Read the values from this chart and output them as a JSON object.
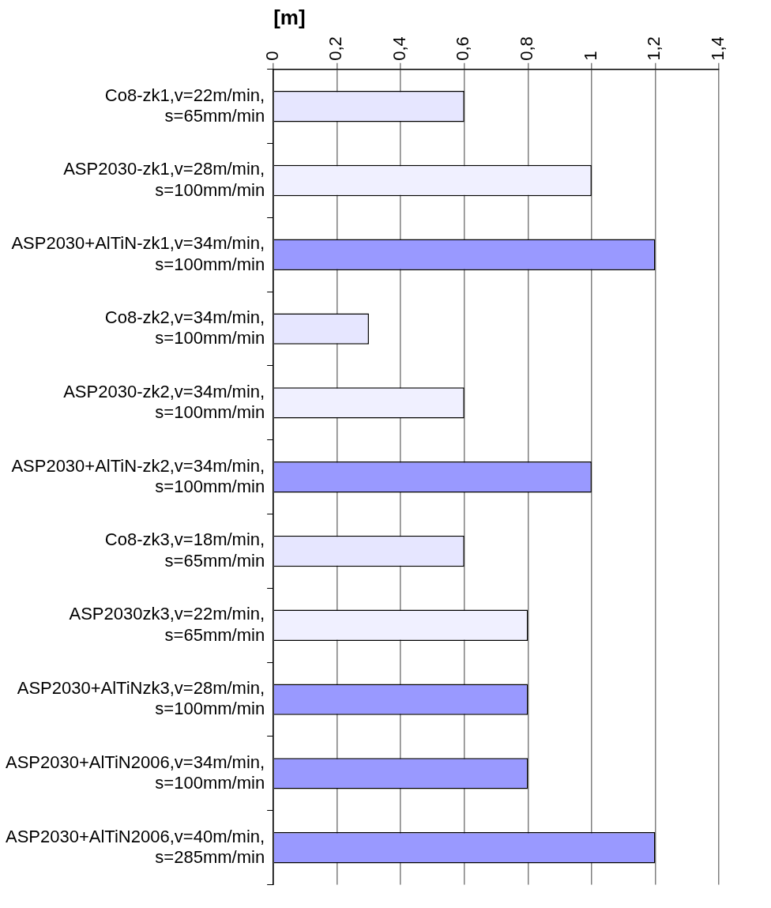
{
  "chart_data": {
    "type": "bar",
    "orientation": "horizontal",
    "xlabel": "[m]",
    "categories": [
      "Co8-zk1,v=22m/min, s=65mm/min",
      "ASP2030-zk1,v=28m/min, s=100mm/min",
      "ASP2030+AlTiN-zk1,v=34m/min, s=100mm/min",
      "Co8-zk2,v=34m/min, s=100mm/min",
      "ASP2030-zk2,v=34m/min, s=100mm/min",
      "ASP2030+AlTiN-zk2,v=34m/min, s=100mm/min",
      "Co8-zk3,v=18m/min, s=65mm/min",
      "ASP2030zk3,v=22m/min, s=65mm/min",
      "ASP2030+AlTiNzk3,v=28m/min, s=100mm/min",
      "ASP2030+AlTiN2006,v=34m/min, s=100mm/min",
      "ASP2030+AlTiN2006,v=40m/min, s=285mm/min"
    ],
    "values": [
      0.6,
      1,
      1.2,
      0.3,
      0.6,
      1,
      0.6,
      0.8,
      0.8,
      0.8,
      1.2
    ],
    "colors": [
      "#e6e6ff",
      "#f0f0ff",
      "#9999ff",
      "#e6e6ff",
      "#f0f0ff",
      "#9999ff",
      "#e6e6ff",
      "#f0f0ff",
      "#9999ff",
      "#9999ff",
      "#9999ff"
    ],
    "xlim": [
      0,
      1.4
    ],
    "xticks": [
      0,
      {
        "value": 0.2,
        "label": "0,2"
      },
      {
        "value": 0.4,
        "label": "0,4"
      },
      {
        "value": 0.6,
        "label": "0,6"
      },
      {
        "value": 0.8,
        "label": "0,8"
      },
      1,
      {
        "value": 1.2,
        "label": "1,2"
      },
      {
        "value": 1.4,
        "label": "1,4"
      }
    ],
    "grid": "x",
    "legend": false
  }
}
